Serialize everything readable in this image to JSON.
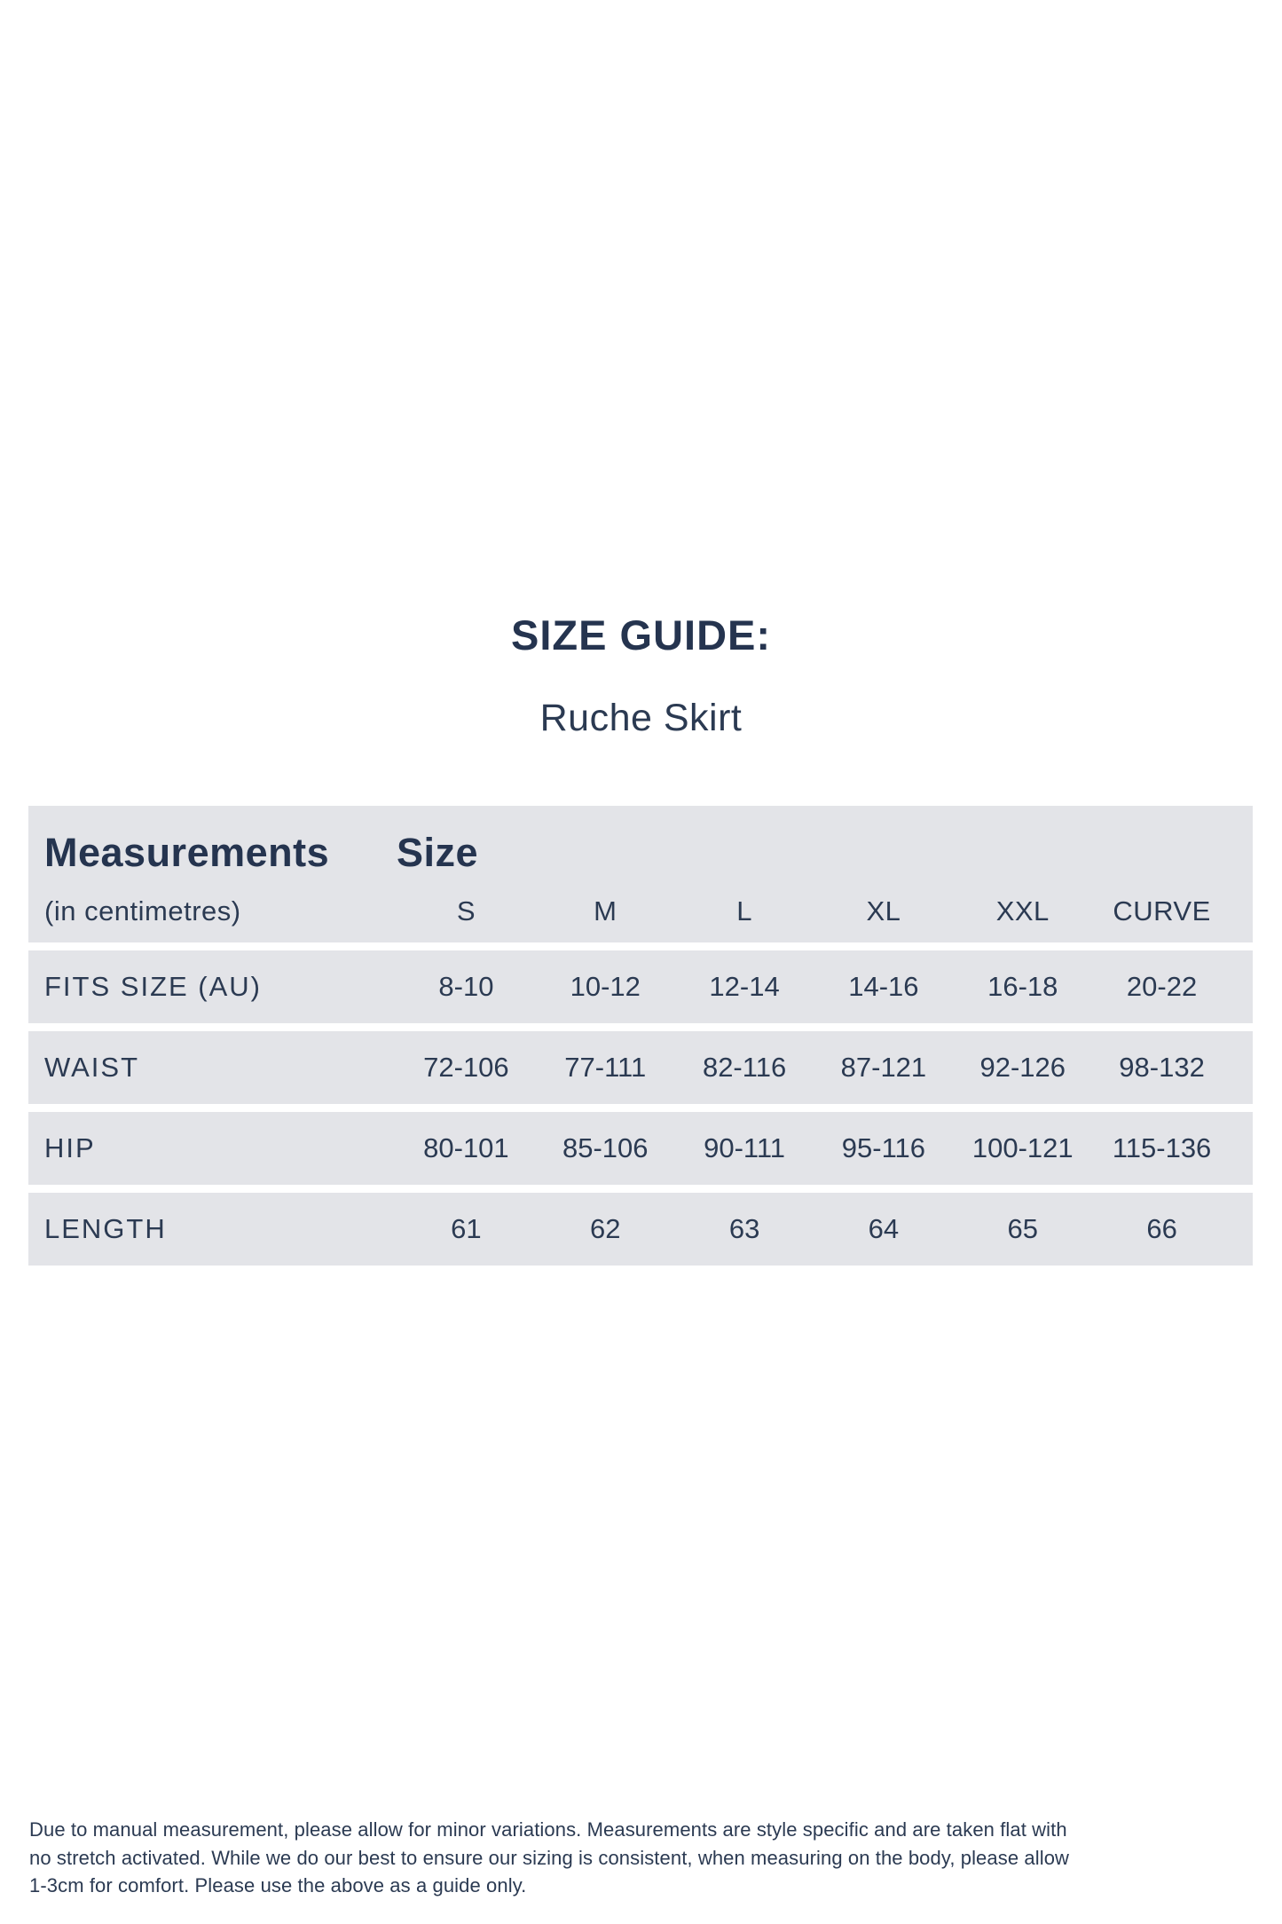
{
  "page": {
    "title": "SIZE GUIDE:",
    "subtitle": "Ruche Skirt"
  },
  "table": {
    "header": {
      "measurements_title": "Measurements",
      "measurements_subtitle": "(in centimetres)",
      "size_title": "Size",
      "sizes": [
        "S",
        "M",
        "L",
        "XL",
        "XXL",
        "CURVE"
      ]
    },
    "rows": [
      {
        "label": "FITS SIZE (AU)",
        "values": [
          "8-10",
          "10-12",
          "12-14",
          "14-16",
          "16-18",
          "20-22"
        ]
      },
      {
        "label": "WAIST",
        "values": [
          "72-106",
          "77-111",
          "82-116",
          "87-121",
          "92-126",
          "98-132"
        ]
      },
      {
        "label": "HIP",
        "values": [
          "80-101",
          "85-106",
          "90-111",
          "95-116",
          "100-121",
          "115-136"
        ]
      },
      {
        "label": "LENGTH",
        "values": [
          "61",
          "62",
          "63",
          "64",
          "65",
          "66"
        ]
      }
    ]
  },
  "footer": {
    "lines": [
      "Due to manual measurement, please allow for minor variations. Measurements are style specific and are taken flat with",
      "no stretch activated. While we do our best to ensure our sizing is consistent, when measuring on the body, please allow",
      "1-3cm for comfort. Please use the above as a guide only."
    ]
  },
  "colors": {
    "text_navy": "#2b3a52",
    "title_navy": "#25344f",
    "row_background": "#e3e4e8",
    "page_background": "#ffffff"
  }
}
